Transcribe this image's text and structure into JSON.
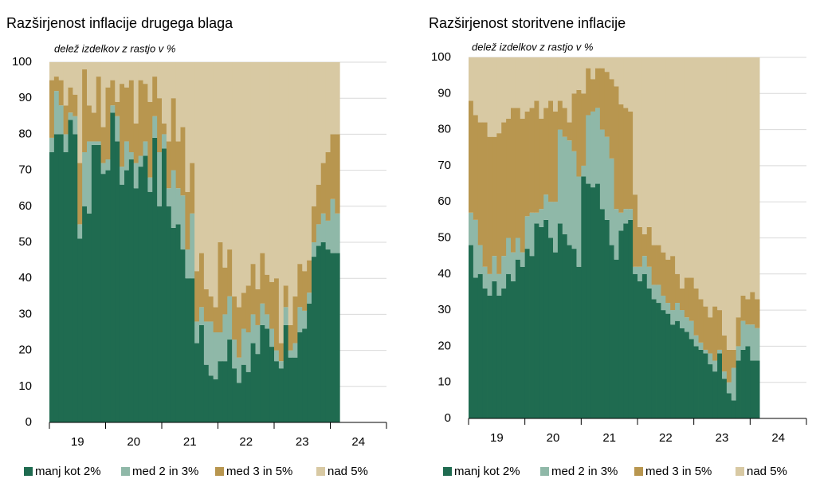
{
  "chart_data": [
    {
      "type": "stacked_bar",
      "title": "Razširjenost inflacije drugega blaga",
      "subtitle": "delež izdelkov z rastjo v %",
      "x_labels": [
        "19",
        "20",
        "21",
        "22",
        "23",
        "24"
      ],
      "ylim": [
        0,
        100
      ],
      "yticks": [
        0,
        10,
        20,
        30,
        40,
        50,
        60,
        70,
        80,
        90,
        100
      ],
      "grid": true,
      "series": [
        {
          "name": "manj kot 2%",
          "color": "#1f6b50",
          "values": [
            75,
            80,
            80,
            75,
            84,
            80,
            51,
            60,
            58,
            77,
            77,
            69,
            70,
            86,
            78,
            66,
            70,
            73,
            65,
            71,
            74,
            64,
            79,
            60,
            76,
            60,
            54,
            55,
            48,
            40,
            40,
            22,
            27,
            16,
            13,
            12,
            17,
            17,
            23,
            15,
            11,
            16,
            14,
            22,
            19,
            27,
            26,
            21,
            17,
            15,
            27,
            18,
            18,
            25,
            26,
            33,
            46,
            49,
            50,
            48,
            47,
            47
          ]
        },
        {
          "name": "med 2 in 3%",
          "color": "#8fb8a8",
          "values": [
            4,
            12,
            8,
            5,
            2,
            5,
            4,
            15,
            20,
            1,
            1,
            3,
            3,
            2,
            7,
            5,
            8,
            2,
            7,
            3,
            4,
            4,
            6,
            15,
            4,
            5,
            16,
            10,
            15,
            8,
            18,
            6,
            5,
            12,
            15,
            13,
            8,
            13,
            12,
            8,
            7,
            10,
            11,
            8,
            8,
            6,
            4,
            5,
            3,
            2,
            5,
            2,
            4,
            7,
            5,
            3,
            4,
            6,
            8,
            8,
            15,
            11
          ]
        },
        {
          "name": "med 3 in 5%",
          "color": "#b8964f",
          "values": [
            16,
            4,
            7,
            8,
            7,
            6,
            17,
            23,
            10,
            8,
            18,
            10,
            20,
            7,
            4,
            23,
            15,
            20,
            11,
            21,
            16,
            21,
            11,
            15,
            3,
            13,
            20,
            13,
            19,
            16,
            14,
            14,
            15,
            9,
            7,
            7,
            25,
            13,
            13,
            12,
            14,
            10,
            13,
            14,
            10,
            14,
            11,
            13,
            20,
            5,
            6,
            7,
            13,
            12,
            11,
            9,
            10,
            11,
            14,
            19,
            18,
            22
          ]
        },
        {
          "name": "nad 5%",
          "color": "#d8c9a3",
          "values": [
            5,
            4,
            5,
            12,
            7,
            9,
            28,
            2,
            12,
            14,
            4,
            18,
            7,
            5,
            11,
            6,
            7,
            5,
            17,
            5,
            6,
            11,
            4,
            10,
            17,
            22,
            10,
            22,
            18,
            36,
            28,
            58,
            53,
            63,
            65,
            68,
            50,
            57,
            52,
            65,
            68,
            64,
            62,
            56,
            63,
            53,
            59,
            61,
            60,
            78,
            62,
            73,
            65,
            56,
            58,
            55,
            40,
            34,
            28,
            25,
            20,
            20
          ]
        }
      ]
    },
    {
      "type": "stacked_bar",
      "title": "Razširjenost storitvene inflacije",
      "subtitle": "delež izdelkov z rastjo v %",
      "x_labels": [
        "19",
        "20",
        "21",
        "22",
        "23",
        "24"
      ],
      "ylim": [
        0,
        100
      ],
      "yticks": [
        0,
        10,
        20,
        30,
        40,
        50,
        60,
        70,
        80,
        90,
        100
      ],
      "grid": true,
      "series": [
        {
          "name": "manj kot 2%",
          "color": "#1f6b50",
          "values": [
            48,
            39,
            40,
            36,
            34,
            38,
            34,
            36,
            40,
            38,
            44,
            42,
            47,
            45,
            54,
            53,
            55,
            50,
            46,
            54,
            51,
            48,
            47,
            42,
            67,
            65,
            64,
            65,
            58,
            55,
            48,
            44,
            52,
            54,
            55,
            40,
            38,
            40,
            36,
            33,
            32,
            30,
            29,
            26,
            27,
            25,
            24,
            22,
            20,
            19,
            18,
            15,
            13,
            18,
            11,
            7,
            5,
            16,
            19,
            20,
            16,
            16
          ]
        },
        {
          "name": "med 2 in 3%",
          "color": "#8fb8a8",
          "values": [
            9,
            16,
            8,
            6,
            6,
            7,
            6,
            9,
            10,
            8,
            6,
            4,
            9,
            12,
            3,
            5,
            7,
            10,
            14,
            26,
            27,
            29,
            27,
            25,
            3,
            19,
            21,
            21,
            22,
            23,
            24,
            14,
            5,
            4,
            3,
            2,
            4,
            5,
            6,
            4,
            5,
            4,
            3,
            4,
            5,
            5,
            4,
            5,
            3,
            2,
            1,
            3,
            3,
            1,
            2,
            3,
            9,
            4,
            8,
            6,
            10,
            9
          ]
        },
        {
          "name": "med 3 in 5%",
          "color": "#b8964f",
          "values": [
            31,
            29,
            34,
            40,
            38,
            33,
            39,
            37,
            33,
            40,
            36,
            37,
            29,
            29,
            31,
            25,
            24,
            28,
            25,
            8,
            8,
            5,
            16,
            24,
            20,
            13,
            9,
            11,
            17,
            18,
            22,
            34,
            30,
            28,
            27,
            20,
            11,
            6,
            11,
            11,
            11,
            12,
            12,
            15,
            8,
            6,
            11,
            12,
            13,
            12,
            12,
            10,
            15,
            11,
            10,
            9,
            5,
            8,
            7,
            7,
            9,
            8
          ]
        },
        {
          "name": "nad 5%",
          "color": "#d8c9a3",
          "values": [
            12,
            16,
            18,
            18,
            22,
            22,
            21,
            18,
            17,
            14,
            14,
            17,
            15,
            14,
            12,
            17,
            14,
            12,
            15,
            12,
            14,
            18,
            10,
            9,
            10,
            3,
            6,
            3,
            3,
            4,
            6,
            8,
            13,
            14,
            15,
            38,
            47,
            49,
            47,
            52,
            52,
            54,
            56,
            55,
            60,
            64,
            61,
            61,
            64,
            67,
            69,
            72,
            69,
            70,
            77,
            81,
            81,
            72,
            66,
            67,
            65,
            67
          ]
        }
      ]
    }
  ]
}
